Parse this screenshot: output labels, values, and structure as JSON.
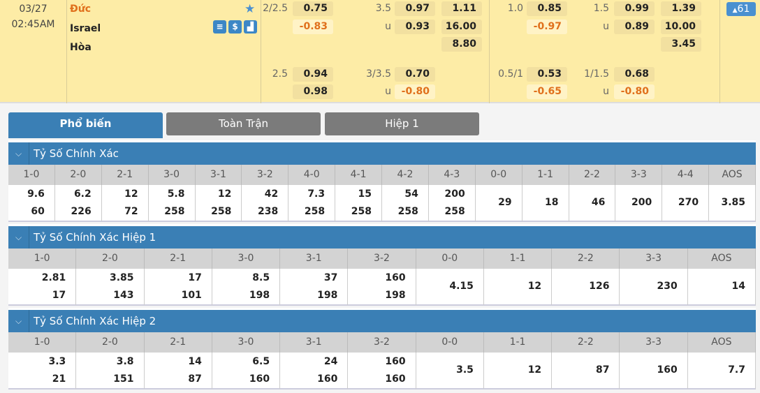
{
  "match": {
    "date": "03/27",
    "time": "02:45AM",
    "home": "Đức",
    "away": "Israel",
    "draw": "Hòa",
    "icons": [
      "scoreboard-icon",
      "dollar-icon",
      "stats-icon"
    ],
    "more_count": "61"
  },
  "odds_rows": [
    {
      "ft_hdp_line": "2/2.5",
      "ft_hdp": "0.75",
      "ft_ou_line": "3.5",
      "ft_ou": "0.97",
      "ft_1x2": "1.11",
      "h1_hdp_line": "1.0",
      "h1_hdp": "0.85",
      "h1_ou_line": "1.5",
      "h1_ou": "0.99",
      "h1_1x2": "1.39"
    },
    {
      "ft_hdp": "-0.83",
      "ft_ou_line": "u",
      "ft_ou": "0.93",
      "ft_1x2": "16.00",
      "h1_hdp": "-0.97",
      "h1_ou_line": "u",
      "h1_ou": "0.89",
      "h1_1x2": "10.00"
    },
    {
      "ft_1x2": "8.80",
      "h1_1x2": "3.45"
    },
    {
      "ft_hdp_line": "2.5",
      "ft_hdp": "0.94",
      "ft_ou_line": "3/3.5",
      "ft_ou": "0.70",
      "h1_hdp_line": "0.5/1",
      "h1_hdp": "0.53",
      "h1_ou_line": "1/1.5",
      "h1_ou": "0.68"
    },
    {
      "ft_hdp": "0.98",
      "ft_ou_line": "u",
      "ft_ou": "-0.80",
      "h1_hdp": "-0.65",
      "h1_ou_line": "u",
      "h1_ou": "-0.80"
    }
  ],
  "tabs": [
    {
      "label": "Phổ biến",
      "active": true
    },
    {
      "label": "Toàn Trận"
    },
    {
      "label": "Hiệp 1"
    }
  ],
  "sections": [
    {
      "title": "Tỷ Số Chính Xác",
      "headers": [
        "1-0",
        "2-0",
        "2-1",
        "3-0",
        "3-1",
        "3-2",
        "4-0",
        "4-1",
        "4-2",
        "4-3",
        "0-0",
        "1-1",
        "2-2",
        "3-3",
        "4-4",
        "AOS"
      ],
      "values": [
        [
          "9.6",
          "60"
        ],
        [
          "6.2",
          "226"
        ],
        [
          "12",
          "72"
        ],
        [
          "5.8",
          "258"
        ],
        [
          "12",
          "258"
        ],
        [
          "42",
          "238"
        ],
        [
          "7.3",
          "258"
        ],
        [
          "15",
          "258"
        ],
        [
          "54",
          "258"
        ],
        [
          "200",
          "258"
        ],
        [
          "29"
        ],
        [
          "18"
        ],
        [
          "46"
        ],
        [
          "200"
        ],
        [
          "270"
        ],
        [
          "3.85"
        ]
      ]
    },
    {
      "title": "Tỷ Số Chính Xác Hiệp 1",
      "headers": [
        "1-0",
        "2-0",
        "2-1",
        "3-0",
        "3-1",
        "3-2",
        "0-0",
        "1-1",
        "2-2",
        "3-3",
        "AOS"
      ],
      "values": [
        [
          "2.81",
          "17"
        ],
        [
          "3.85",
          "143"
        ],
        [
          "17",
          "101"
        ],
        [
          "8.5",
          "198"
        ],
        [
          "37",
          "198"
        ],
        [
          "160",
          "198"
        ],
        [
          "4.15"
        ],
        [
          "12"
        ],
        [
          "126"
        ],
        [
          "230"
        ],
        [
          "14"
        ]
      ]
    },
    {
      "title": "Tỷ Số Chính Xác Hiệp 2",
      "headers": [
        "1-0",
        "2-0",
        "2-1",
        "3-0",
        "3-1",
        "3-2",
        "0-0",
        "1-1",
        "2-2",
        "3-3",
        "AOS"
      ],
      "values": [
        [
          "3.3",
          "21"
        ],
        [
          "3.8",
          "151"
        ],
        [
          "14",
          "87"
        ],
        [
          "6.5",
          "160"
        ],
        [
          "24",
          "160"
        ],
        [
          "160",
          "160"
        ],
        [
          "3.5"
        ],
        [
          "12"
        ],
        [
          "87"
        ],
        [
          "160"
        ],
        [
          "7.7"
        ]
      ]
    }
  ],
  "colors": {
    "header_bg": "#fdeca6",
    "accent": "#3a7fb5",
    "negative": "#e0701c",
    "tab_inactive": "#7b7b7b"
  }
}
